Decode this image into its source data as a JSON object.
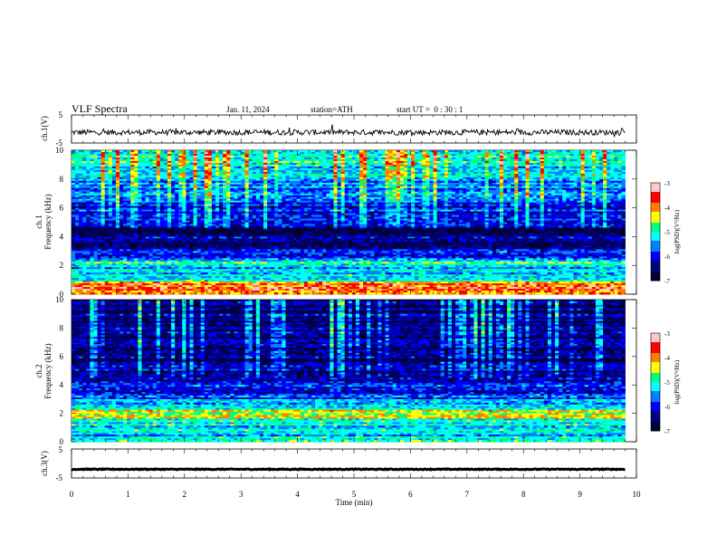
{
  "header": {
    "title": "VLF Spectra",
    "date": "Jan. 11, 2024",
    "station": "station=ATH",
    "start_time": "start UT =  0 : 30 : 1"
  },
  "chart_data": [
    {
      "type": "line",
      "panel": "ch1-waveform",
      "ylabel": "ch.1(V)",
      "ylim": [
        -5,
        5
      ],
      "yticks": [
        "5",
        "-5"
      ],
      "xlim": [
        0,
        10
      ],
      "xend": 9.8,
      "baseline": -1.2,
      "noise_amplitude": 1.0,
      "color": "#000000"
    },
    {
      "type": "heatmap",
      "panel": "ch1-spectrogram",
      "ylabel_channel": "ch.1",
      "ylabel": "Frequency (kHz)",
      "ylim": [
        0,
        10
      ],
      "yticks": [
        "0",
        "2",
        "4",
        "6",
        "8",
        "10"
      ],
      "xlim": [
        0,
        10
      ],
      "xend": 9.8,
      "colorbar": {
        "label": "log(PSD)(V²/Hz)",
        "range": [
          -7,
          -3
        ],
        "ticks": [
          "-3",
          "-4",
          "-5",
          "-6",
          "-7"
        ]
      },
      "intensity_profile": [
        {
          "freq_khz": 0.0,
          "logpsd": -4.0
        },
        {
          "freq_khz": 0.5,
          "logpsd": -3.6
        },
        {
          "freq_khz": 1.0,
          "logpsd": -4.8
        },
        {
          "freq_khz": 1.5,
          "logpsd": -5.6
        },
        {
          "freq_khz": 2.1,
          "logpsd": -5.0
        },
        {
          "freq_khz": 3.0,
          "logpsd": -6.2
        },
        {
          "freq_khz": 4.3,
          "logpsd": -6.6
        },
        {
          "freq_khz": 5.5,
          "logpsd": -6.1
        },
        {
          "freq_khz": 6.5,
          "logpsd": -5.9
        },
        {
          "freq_khz": 8.0,
          "logpsd": -5.5
        },
        {
          "freq_khz": 9.3,
          "logpsd": -5.0
        },
        {
          "freq_khz": 10.0,
          "logpsd": -4.9
        }
      ]
    },
    {
      "type": "heatmap",
      "panel": "ch2-spectrogram",
      "ylabel_channel": "ch.2",
      "ylabel": "Frequency (kHz)",
      "ylim": [
        0,
        10
      ],
      "yticks": [
        "0",
        "2",
        "4",
        "6",
        "8",
        "10"
      ],
      "xlim": [
        0,
        10
      ],
      "xend": 9.8,
      "colorbar": {
        "label": "log(PSD)(V²/Hz)",
        "range": [
          -7,
          -3
        ],
        "ticks": [
          "-3",
          "-4",
          "-5",
          "-6",
          "-7"
        ]
      },
      "intensity_profile": [
        {
          "freq_khz": 0.0,
          "logpsd": -5.0
        },
        {
          "freq_khz": 0.6,
          "logpsd": -5.4
        },
        {
          "freq_khz": 1.2,
          "logpsd": -5.1
        },
        {
          "freq_khz": 2.0,
          "logpsd": -4.3
        },
        {
          "freq_khz": 2.8,
          "logpsd": -5.6
        },
        {
          "freq_khz": 4.0,
          "logpsd": -6.1
        },
        {
          "freq_khz": 5.0,
          "logpsd": -6.4
        },
        {
          "freq_khz": 6.5,
          "logpsd": -6.6
        },
        {
          "freq_khz": 8.0,
          "logpsd": -6.5
        },
        {
          "freq_khz": 10.0,
          "logpsd": -6.4
        }
      ]
    },
    {
      "type": "line",
      "panel": "ch3-waveform",
      "ylabel": "ch.3(V)",
      "ylim": [
        -5,
        5
      ],
      "yticks": [
        "5",
        "-5"
      ],
      "xlim": [
        0,
        10
      ],
      "xend": 9.8,
      "baseline": -2.0,
      "noise_amplitude": 0.15,
      "color": "#000000"
    }
  ],
  "x_axis": {
    "xlabel": "Time (min)",
    "ticks": [
      "0",
      "1",
      "2",
      "3",
      "4",
      "5",
      "6",
      "7",
      "8",
      "9",
      "10"
    ]
  },
  "colormap": [
    "#000033",
    "#000080",
    "#0000ff",
    "#0080ff",
    "#00ffff",
    "#00ff80",
    "#ffff00",
    "#ff8000",
    "#ff0000",
    "#ffc8c8"
  ]
}
